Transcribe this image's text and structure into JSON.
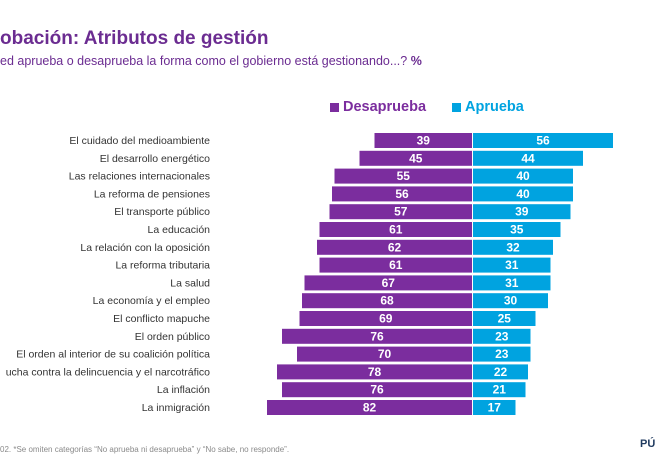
{
  "title": "obación: Atributos de gestión",
  "subtitle": "ed aprueba o desaprueba la forma como el gobierno está gestionando...?",
  "subtitle_unit": "%",
  "footnote": "02. *Se omiten categorías “No aprueba ni desaprueba” y “No sabe, no responde”.",
  "logo_text": "PÚ",
  "colors": {
    "desaprueba": "#7b2d9e",
    "aprueba": "#00a3e0",
    "title": "#6b2c91"
  },
  "chart_data": {
    "type": "bar",
    "orientation": "horizontal-diverging",
    "categories": [
      "El cuidado del medioambiente",
      "El desarrollo energético",
      "Las relaciones internacionales",
      "La reforma de pensiones",
      "El transporte público",
      "La educación",
      "La relación con la oposición",
      "La reforma tributaria",
      "La salud",
      "La economía y el empleo",
      "El conflicto mapuche",
      "El orden público",
      "El orden al interior de su coalición política",
      "ucha contra la delincuencia y el narcotráfico",
      "La inflación",
      "La inmigración"
    ],
    "series": [
      {
        "name": "Desaprueba",
        "values": [
          39,
          45,
          55,
          56,
          57,
          61,
          62,
          61,
          67,
          68,
          69,
          76,
          70,
          78,
          76,
          82
        ]
      },
      {
        "name": "Aprueba",
        "values": [
          56,
          44,
          40,
          40,
          39,
          35,
          32,
          31,
          31,
          30,
          25,
          23,
          23,
          22,
          21,
          17
        ]
      }
    ],
    "legend": "top-center",
    "grid": false
  }
}
